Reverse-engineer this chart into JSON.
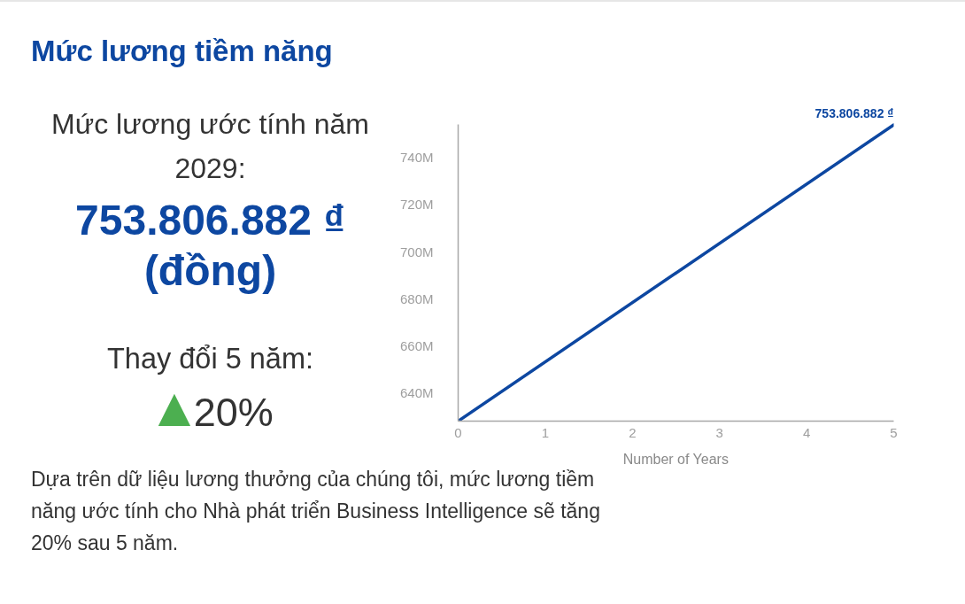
{
  "chart_data": {
    "type": "line",
    "title": "Mức lương tiềm năng",
    "xlabel": "Number of Years",
    "x": [
      0,
      5
    ],
    "values": [
      628000000,
      753806882
    ],
    "color": "#0d47a1",
    "value_labels": [
      null,
      "753.806.882 ₫"
    ],
    "xlim": [
      0,
      5
    ],
    "ylim": [
      628000000,
      754000000
    ],
    "xticks": [
      0,
      1,
      2,
      3,
      4,
      5
    ],
    "yticks": [
      {
        "value": 640000000,
        "label": "640M"
      },
      {
        "value": 660000000,
        "label": "660M"
      },
      {
        "value": 680000000,
        "label": "680M"
      },
      {
        "value": 700000000,
        "label": "700M"
      },
      {
        "value": 720000000,
        "label": "720M"
      },
      {
        "value": 740000000,
        "label": "740M"
      }
    ],
    "grid": false,
    "annotations": [
      "Mức lương ước tính năm 2029:",
      "753.806.882 ₫ (đồng)",
      "Thay đổi 5 năm:",
      "▲20%",
      "Dựa trên dữ liệu lương thưởng của chúng tôi, mức lương tiềm năng ước tính cho Nhà phát triển Business Intelligence sẽ tăng 20% sau 5 năm."
    ]
  }
}
